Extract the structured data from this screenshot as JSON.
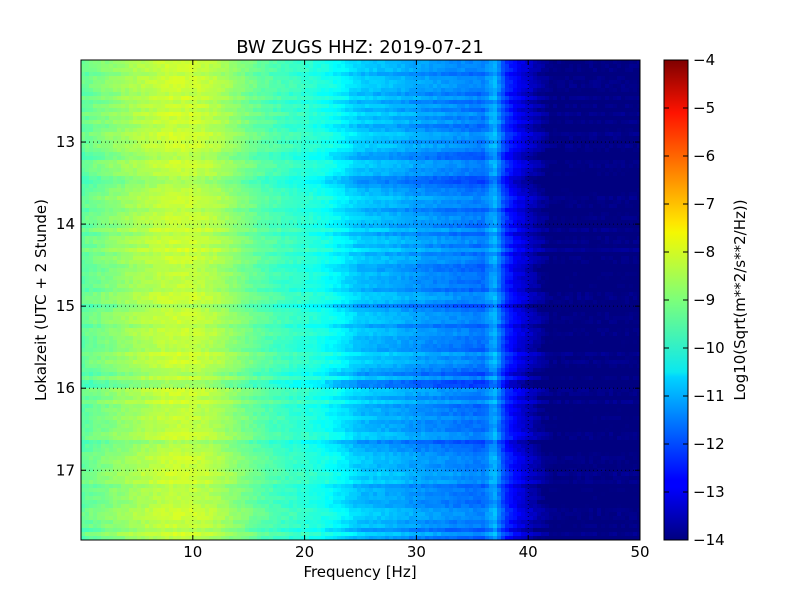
{
  "chart_data": {
    "type": "heatmap",
    "title": "BW ZUGS HHZ: 2019-07-21",
    "xlabel": "Frequency [Hz]",
    "ylabel": "Lokalzeit (UTC + 2 Stunde)",
    "xlim": [
      0,
      50
    ],
    "ylim": [
      17.85,
      12.0
    ],
    "x_ticks": [
      10,
      20,
      30,
      40,
      50
    ],
    "y_ticks": [
      13,
      14,
      15,
      16,
      17
    ],
    "grid": true,
    "colormap": "jet",
    "colorbar": {
      "label": "Log10(Sqrt(m**2/s**2/Hz))",
      "range": [
        -14,
        -4
      ],
      "ticks": [
        -4,
        -5,
        -6,
        -7,
        -8,
        -9,
        -10,
        -11,
        -12,
        -13,
        -14
      ]
    },
    "frequency_profile": {
      "frequency_hz": [
        0,
        2,
        5,
        8,
        10,
        12,
        14,
        16,
        18,
        20,
        22,
        23,
        25,
        28,
        30,
        33,
        36,
        37,
        38,
        39,
        40,
        41,
        42,
        45,
        50
      ],
      "log10_amplitude": [
        -9.3,
        -9.0,
        -8.6,
        -8.3,
        -8.3,
        -8.5,
        -8.9,
        -9.3,
        -9.6,
        -9.8,
        -10.1,
        -10.3,
        -10.8,
        -11.0,
        -11.2,
        -11.4,
        -11.6,
        -11.0,
        -12.3,
        -12.9,
        -13.3,
        -13.7,
        -14.0,
        -14.0,
        -14.0
      ]
    }
  }
}
